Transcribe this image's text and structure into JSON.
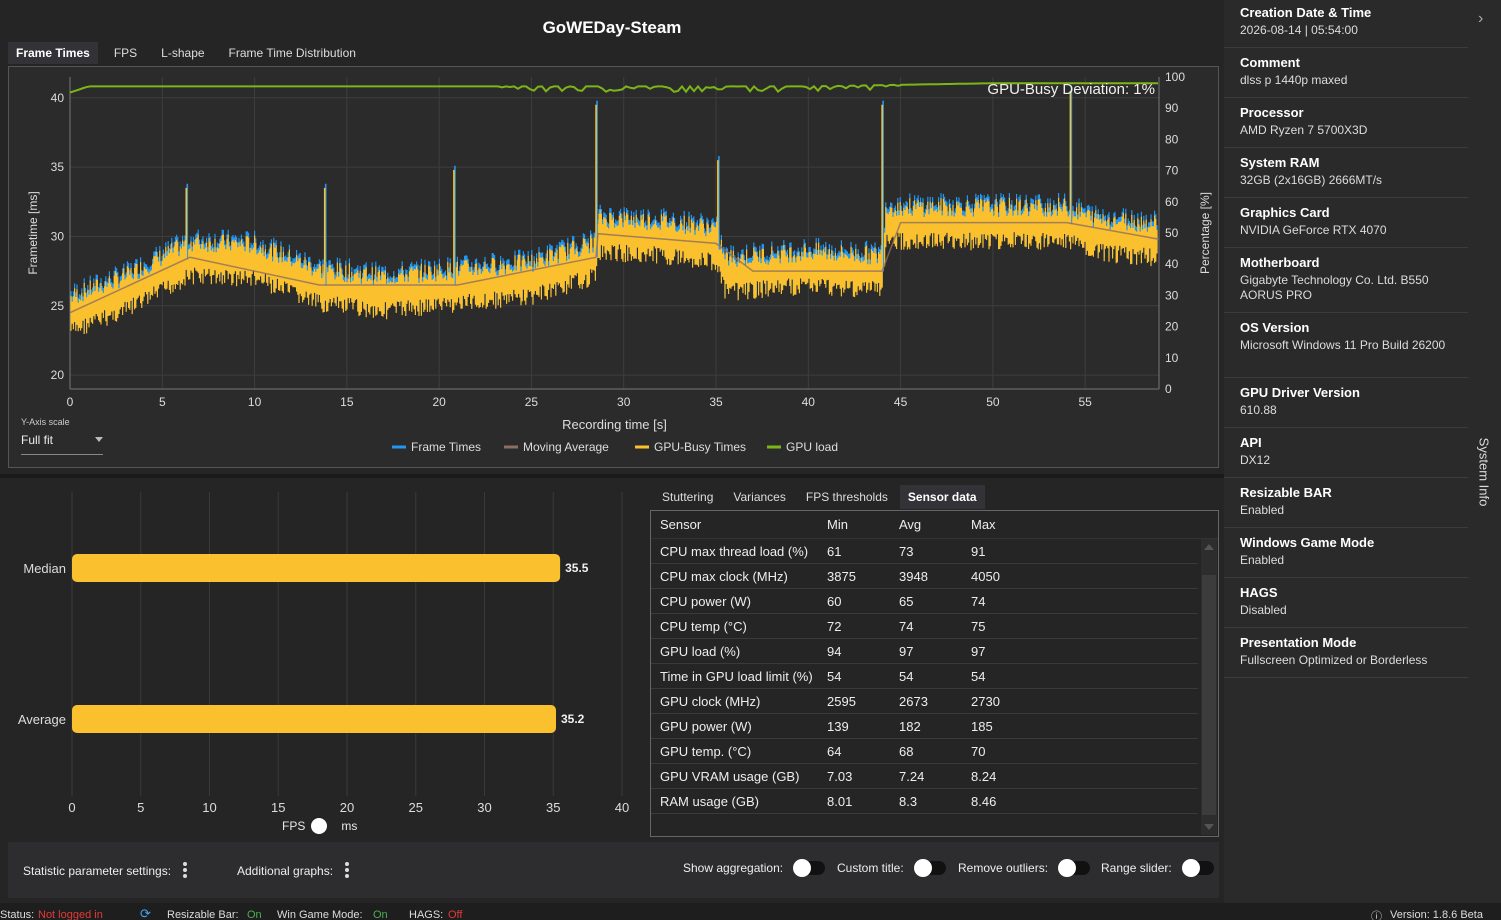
{
  "header": {
    "title": "GoWEDay-Steam"
  },
  "top_tabs": [
    "Frame Times",
    "FPS",
    "L-shape",
    "Frame Time Distribution"
  ],
  "frametime_chart": {
    "annotation": "GPU-Busy Deviation: 1%",
    "y_scale_label": "Y-Axis scale",
    "y_scale_value": "Full fit",
    "legend": [
      "Frame Times",
      "Moving Average",
      "GPU-Busy Times",
      "GPU load"
    ]
  },
  "sub_tabs": [
    "Stuttering",
    "Variances",
    "FPS thresholds",
    "Sensor data"
  ],
  "sensor_table": {
    "headers": [
      "Sensor",
      "Min",
      "Avg",
      "Max"
    ],
    "rows": [
      [
        "CPU max thread load (%)",
        "61",
        "73",
        "91"
      ],
      [
        "CPU max clock (MHz)",
        "3875",
        "3948",
        "4050"
      ],
      [
        "CPU power (W)",
        "60",
        "65",
        "74"
      ],
      [
        "CPU temp (°C)",
        "72",
        "74",
        "75"
      ],
      [
        "GPU load (%)",
        "94",
        "97",
        "97"
      ],
      [
        "Time in GPU load limit (%)",
        "54",
        "54",
        "54"
      ],
      [
        "GPU clock (MHz)",
        "2595",
        "2673",
        "2730"
      ],
      [
        "GPU power (W)",
        "139",
        "182",
        "185"
      ],
      [
        "GPU temp. (°C)",
        "64",
        "68",
        "70"
      ],
      [
        "GPU VRAM usage (GB)",
        "7.03",
        "7.24",
        "8.24"
      ],
      [
        "RAM usage (GB)",
        "8.01",
        "8.3",
        "8.46"
      ]
    ]
  },
  "bar_toggle": {
    "left": "FPS",
    "right": "ms"
  },
  "options": {
    "statistic_settings": "Statistic parameter settings:",
    "additional_graphs": "Additional graphs:",
    "show_aggregation": "Show aggregation:",
    "custom_title": "Custom title:",
    "remove_outliers": "Remove outliers:",
    "range_slider": "Range slider:"
  },
  "status": {
    "status_label": "Status:",
    "status_value": "Not logged in",
    "resizable_bar_label": "Resizable Bar:",
    "resizable_bar_value": "On",
    "win_game_mode_label": "Win Game Mode:",
    "win_game_mode_value": "On",
    "hags_label": "HAGS:",
    "hags_value": "Off",
    "version": "Version: 1.8.6 Beta"
  },
  "system_info": {
    "tab_label": "System Info",
    "items": [
      {
        "label": "Creation Date & Time",
        "value": "2026-08-14  |  05:54:00"
      },
      {
        "label": "Comment",
        "value": "dlss p 1440p maxed"
      },
      {
        "label": "Processor",
        "value": "AMD Ryzen 7 5700X3D"
      },
      {
        "label": "System RAM",
        "value": "32GB (2x16GB) 2666MT/s"
      },
      {
        "label": "Graphics Card",
        "value": "NVIDIA GeForce RTX 4070"
      },
      {
        "label": "Motherboard",
        "value": "Gigabyte Technology Co. Ltd. B550 AORUS PRO"
      },
      {
        "label": "OS Version",
        "value": "Microsoft Windows 11 Pro Build 26200"
      },
      {
        "label": "GPU Driver Version",
        "value": "610.88"
      },
      {
        "label": "API",
        "value": "DX12"
      },
      {
        "label": "Resizable BAR",
        "value": "Enabled"
      },
      {
        "label": "Windows Game Mode",
        "value": "Enabled"
      },
      {
        "label": "HAGS",
        "value": "Disabled"
      },
      {
        "label": "Presentation Mode",
        "value": "Fullscreen Optimized or Borderless"
      }
    ]
  },
  "colors": {
    "frame_times": "#2196f3",
    "moving_average": "#8d6e63",
    "gpu_busy": "#fbc02d",
    "gpu_load": "#7cb518",
    "bar": "#fbc02d"
  },
  "chart_data": [
    {
      "type": "line",
      "xlabel": "Recording time [s]",
      "ylabel": "Frametime [ms]",
      "y2label": "Percentage [%]",
      "xlim": [
        0,
        59
      ],
      "ylim": [
        19,
        41.5
      ],
      "y2lim": [
        0,
        100
      ],
      "xticks": [
        0,
        5,
        10,
        15,
        20,
        25,
        30,
        35,
        40,
        45,
        50,
        55
      ],
      "yticks": [
        20,
        25,
        30,
        35,
        40
      ],
      "y2ticks": [
        0,
        10,
        20,
        30,
        40,
        50,
        60,
        70,
        80,
        90,
        100
      ],
      "series": [
        {
          "name": "GPU-Busy Times",
          "segments": [
            [
              0,
              24.5
            ],
            [
              3,
              26
            ],
            [
              6.5,
              28.5
            ],
            [
              10,
              28.3
            ],
            [
              13.5,
              26.5
            ],
            [
              17,
              26
            ],
            [
              21,
              26.5
            ],
            [
              25,
              27
            ],
            [
              28.5,
              28.5
            ],
            [
              28.6,
              30.2
            ],
            [
              32,
              30
            ],
            [
              35,
              29.5
            ],
            [
              35.5,
              27.3
            ],
            [
              40,
              27.8
            ],
            [
              44,
              27.5
            ],
            [
              44.2,
              31
            ],
            [
              48,
              31
            ],
            [
              54,
              31
            ],
            [
              55.5,
              30.2
            ],
            [
              59,
              29.8
            ]
          ],
          "spikes": [
            [
              6.3,
              33.5
            ],
            [
              13.8,
              33.5
            ],
            [
              20.8,
              34.8
            ],
            [
              28.5,
              39.5
            ],
            [
              35.1,
              35.5
            ],
            [
              44,
              39.5
            ],
            [
              54.2,
              40.5
            ]
          ]
        },
        {
          "name": "Moving Average",
          "values": [
            [
              0,
              24.5
            ],
            [
              6.5,
              28.5
            ],
            [
              13.5,
              26.5
            ],
            [
              21,
              26.5
            ],
            [
              28.5,
              28.5
            ],
            [
              28.6,
              30.2
            ],
            [
              35,
              29.5
            ],
            [
              37,
              27.5
            ],
            [
              44,
              27.5
            ],
            [
              45,
              31
            ],
            [
              54,
              31
            ],
            [
              59,
              29.8
            ]
          ]
        },
        {
          "name": "GPU load",
          "values": [
            [
              0,
              95
            ],
            [
              1,
              97
            ],
            [
              10,
              97
            ],
            [
              25,
              97
            ],
            [
              30,
              97
            ],
            [
              40,
              97
            ],
            [
              50,
              98
            ],
            [
              59,
              98
            ]
          ]
        }
      ]
    },
    {
      "type": "bar",
      "orientation": "horizontal",
      "categories": [
        "Median",
        "Average"
      ],
      "values": [
        35.5,
        35.2
      ],
      "xlim": [
        0,
        40
      ],
      "xticks": [
        0,
        5,
        10,
        15,
        20,
        25,
        30,
        35,
        40
      ]
    }
  ]
}
